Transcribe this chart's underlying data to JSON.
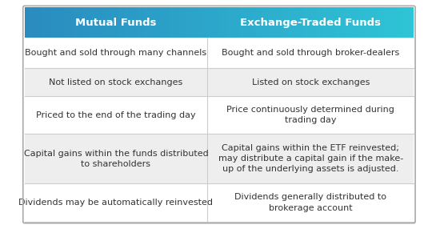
{
  "col1_header": "Mutual Funds",
  "col2_header": "Exchange-Traded Funds",
  "rows": [
    [
      "Bought and sold through many channels",
      "Bought and sold through broker-dealers"
    ],
    [
      "Not listed on stock exchanges",
      "Listed on stock exchanges"
    ],
    [
      "Priced to the end of the trading day",
      "Price continuously determined during\ntrading day"
    ],
    [
      "Capital gains within the funds distributed\nto shareholders",
      "Capital gains within the ETF reinvested;\nmay distribute a capital gain if the make-\nup of the underlying assets is adjusted."
    ],
    [
      "Dividends may be automatically reinvested",
      "Dividends generally distributed to\nbrokerage account"
    ]
  ],
  "col1_header_color": "#2a8bbf",
  "col2_header_color": "#2ec4d6",
  "header_text_color": "#ffffff",
  "row_colors": [
    "#ffffff",
    "#eeeeee",
    "#ffffff",
    "#eeeeee",
    "#ffffff"
  ],
  "cell_text_color": "#333333",
  "divider_color": "#cccccc",
  "border_color": "#aaaaaa",
  "header_fontsize": 9.5,
  "cell_fontsize": 8.0,
  "bg_color": "#ffffff",
  "col_split": 0.47
}
